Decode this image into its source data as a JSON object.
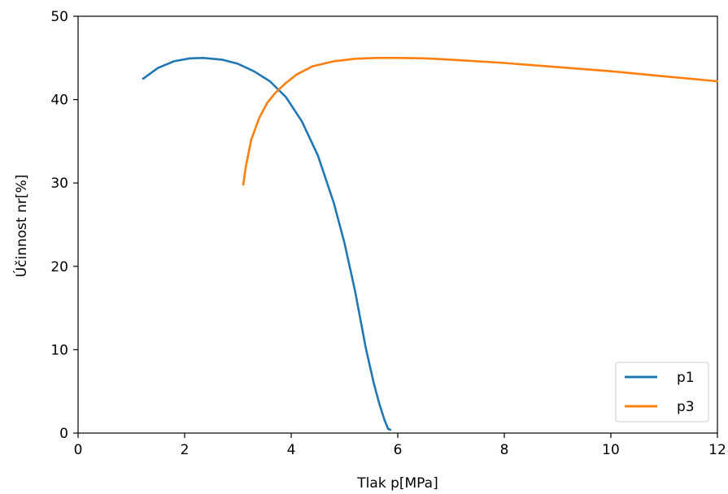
{
  "chart_data": {
    "type": "line",
    "xlabel": "Tlak p[MPa]",
    "ylabel": "Účinnost nr[%]",
    "xlim": [
      0,
      12
    ],
    "ylim": [
      0,
      50
    ],
    "x_ticks": [
      "0",
      "2",
      "4",
      "6",
      "8",
      "10",
      "12"
    ],
    "y_ticks": [
      "0",
      "10",
      "20",
      "30",
      "40",
      "50"
    ],
    "grid": false,
    "legend_position": "lower-right",
    "series": [
      {
        "name": "p1",
        "color": "#1f77b4",
        "x": [
          1.22,
          1.5,
          1.8,
          2.1,
          2.35,
          2.7,
          3.0,
          3.3,
          3.6,
          3.9,
          4.2,
          4.5,
          4.8,
          5.0,
          5.2,
          5.4,
          5.55,
          5.65,
          5.75,
          5.82,
          5.86
        ],
        "y": [
          42.5,
          43.8,
          44.6,
          44.95,
          45.0,
          44.8,
          44.3,
          43.4,
          42.2,
          40.3,
          37.4,
          33.3,
          27.6,
          22.8,
          17.0,
          10.2,
          6.0,
          3.6,
          1.6,
          0.5,
          0.4
        ]
      },
      {
        "name": "p3",
        "color": "#ff7f0e",
        "x": [
          3.1,
          3.15,
          3.25,
          3.4,
          3.55,
          3.7,
          3.9,
          4.1,
          4.4,
          4.8,
          5.2,
          5.6,
          6.0,
          6.5,
          7.0,
          8.0,
          9.0,
          10.0,
          11.0,
          12.0
        ],
        "y": [
          29.8,
          32.0,
          35.2,
          37.8,
          39.6,
          40.8,
          42.0,
          43.0,
          44.0,
          44.6,
          44.9,
          45.0,
          45.0,
          44.95,
          44.8,
          44.4,
          43.9,
          43.4,
          42.8,
          42.2
        ]
      }
    ]
  }
}
